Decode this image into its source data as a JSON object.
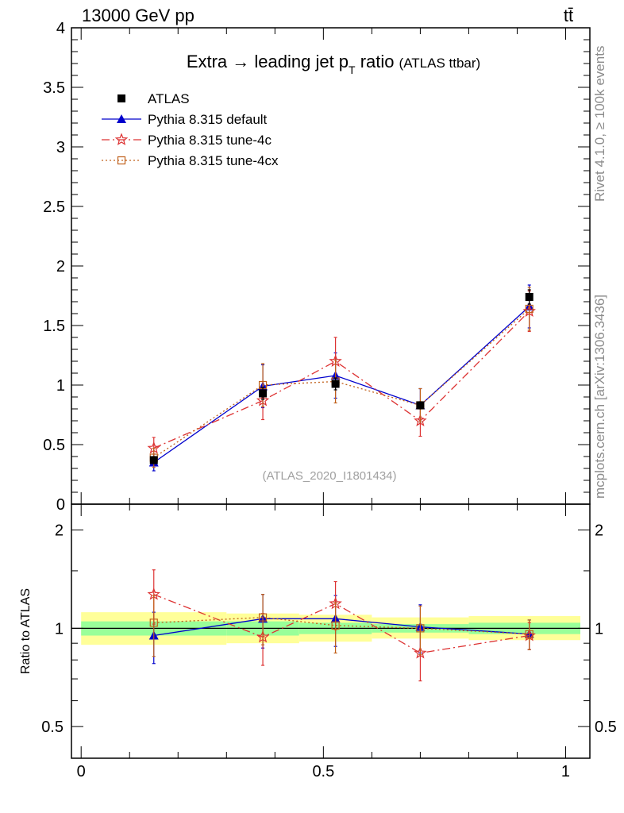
{
  "header": {
    "energy_label": "13000 GeV pp",
    "process_label": "tt̄"
  },
  "side_texts": {
    "rivet": "Rivet 4.1.0, ≥ 100k events",
    "mcplots": "mcplots.cern.ch [arXiv:1306.3436]"
  },
  "chart_data": [
    {
      "type": "line",
      "panel": "main",
      "title_main": "Extra → leading jet p",
      "title_sub": "T",
      "title_tail": " ratio",
      "title_small": "(ATLAS ttbar)",
      "watermark": "(ATLAS_2020_I1801434)",
      "xlim": [
        -0.02,
        1.05
      ],
      "ylim": [
        0,
        4
      ],
      "xticks": [
        "0",
        "0.5",
        "1"
      ],
      "yticks": [
        "0",
        "0.5",
        "1",
        "1.5",
        "2",
        "2.5",
        "3",
        "3.5",
        "4"
      ],
      "bins": [
        [
          0.0,
          0.3
        ],
        [
          0.3,
          0.45
        ],
        [
          0.45,
          0.6
        ],
        [
          0.6,
          0.8
        ],
        [
          0.8,
          1.05
        ]
      ],
      "series": [
        {
          "name": "ATLAS",
          "color": "#000000",
          "marker": "square-filled",
          "dash": "",
          "line": false,
          "x": [
            0.15,
            0.375,
            0.525,
            0.7,
            0.925
          ],
          "y": [
            0.37,
            0.93,
            1.01,
            0.83,
            1.74
          ],
          "err": [
            0.03,
            0.05,
            0.05,
            0.03,
            0.06
          ]
        },
        {
          "name": "Pythia 8.315 default",
          "color": "#0000cc",
          "marker": "triangle",
          "dash": "",
          "line": true,
          "x": [
            0.15,
            0.375,
            0.525,
            0.7,
            0.925
          ],
          "y": [
            0.35,
            0.99,
            1.08,
            0.83,
            1.66
          ],
          "err": [
            0.07,
            0.18,
            0.19,
            0.14,
            0.18
          ]
        },
        {
          "name": "Pythia 8.315 tune-4c",
          "color": "#dd3333",
          "marker": "star",
          "dash": "10,4,2,4",
          "line": true,
          "x": [
            0.15,
            0.375,
            0.525,
            0.7,
            0.925
          ],
          "y": [
            0.47,
            0.87,
            1.2,
            0.7,
            1.62
          ],
          "err": [
            0.09,
            0.16,
            0.2,
            0.13,
            0.17
          ]
        },
        {
          "name": "Pythia 8.315 tune-4cx",
          "color": "#c0601a",
          "marker": "square-open",
          "dash": "2,3",
          "line": true,
          "x": [
            0.15,
            0.375,
            0.525,
            0.7,
            0.925
          ],
          "y": [
            0.39,
            1.0,
            1.03,
            0.83,
            1.64
          ],
          "err": [
            0.08,
            0.18,
            0.18,
            0.14,
            0.18
          ]
        }
      ]
    },
    {
      "type": "line",
      "panel": "ratio",
      "ylabel": "Ratio to ATLAS",
      "xlim": [
        -0.02,
        1.05
      ],
      "ylog": true,
      "ylim": [
        0.4,
        2.4
      ],
      "yticks": [
        "0.5",
        "1",
        "2"
      ],
      "xticks": [
        "0",
        "0.5",
        "1"
      ],
      "band_green": [
        [
          0.95,
          1.05
        ],
        [
          0.95,
          1.05
        ],
        [
          0.96,
          1.04
        ],
        [
          0.97,
          1.03
        ],
        [
          0.96,
          1.04
        ]
      ],
      "band_yellow": [
        [
          0.89,
          1.12
        ],
        [
          0.9,
          1.11
        ],
        [
          0.91,
          1.1
        ],
        [
          0.93,
          1.08
        ],
        [
          0.92,
          1.09
        ]
      ],
      "series": [
        {
          "name": "Pythia 8.315 default",
          "y": [
            0.95,
            1.07,
            1.07,
            1.01,
            0.96
          ],
          "err": [
            0.17,
            0.2,
            0.19,
            0.17,
            0.1
          ]
        },
        {
          "name": "Pythia 8.315 tune-4c",
          "y": [
            1.27,
            0.94,
            1.19,
            0.84,
            0.95
          ],
          "err": [
            0.24,
            0.17,
            0.2,
            0.15,
            0.09
          ]
        },
        {
          "name": "Pythia 8.315 tune-4cx",
          "y": [
            1.04,
            1.08,
            1.02,
            1.0,
            0.96
          ],
          "err": [
            0.22,
            0.19,
            0.18,
            0.17,
            0.1
          ]
        }
      ]
    }
  ]
}
